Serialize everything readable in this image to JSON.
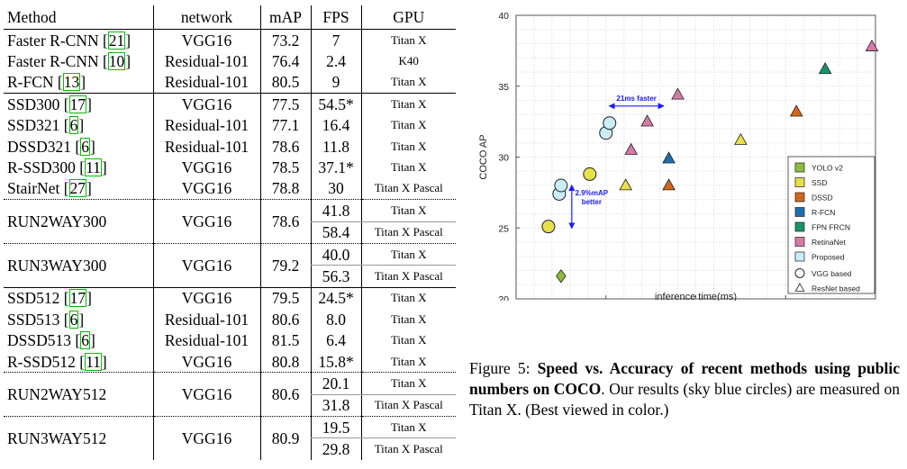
{
  "table": {
    "headers": {
      "method": "Method",
      "network": "network",
      "map": "mAP",
      "fps": "FPS",
      "gpu": "GPU"
    },
    "rows": [
      {
        "method": "Faster R-CNN",
        "ref": "21",
        "network": "VGG16",
        "map": "73.2",
        "fps": "7",
        "gpu": "Titan X"
      },
      {
        "method": "Faster R-CNN",
        "ref": "10",
        "network": "Residual-101",
        "map": "76.4",
        "fps": "2.4",
        "gpu": "K40"
      },
      {
        "method": "R-FCN",
        "ref": "13",
        "network": "Residual-101",
        "map": "80.5",
        "fps": "9",
        "gpu": "Titan X"
      },
      {
        "method": "SSD300",
        "ref": "17",
        "network": "VGG16",
        "map": "77.5",
        "fps": "54.5*",
        "gpu": "Titan X"
      },
      {
        "method": "SSD321",
        "ref": "6",
        "network": "Residual-101",
        "map": "77.1",
        "fps": "16.4",
        "gpu": "Titan X"
      },
      {
        "method": "DSSD321",
        "ref": "6",
        "network": "Residual-101",
        "map": "78.6",
        "fps": "11.8",
        "gpu": "Titan X"
      },
      {
        "method": "R-SSD300",
        "ref": "11",
        "network": "VGG16",
        "map": "78.5",
        "fps": "37.1*",
        "gpu": "Titan X"
      },
      {
        "method": "StairNet",
        "ref": "27",
        "network": "VGG16",
        "map": "78.8",
        "fps": "30",
        "gpu": "Titan X Pascal"
      },
      {
        "method": "RUN2WAY300",
        "network": "VGG16",
        "map": "78.6",
        "fps": "41.8",
        "gpu": "Titan X",
        "fps2": "58.4",
        "gpu2": "Titan X Pascal"
      },
      {
        "method": "RUN3WAY300",
        "network": "VGG16",
        "map": "79.2",
        "fps": "40.0",
        "gpu": "Titan X",
        "fps2": "56.3",
        "gpu2": "Titan X Pascal"
      },
      {
        "method": "SSD512",
        "ref": "17",
        "network": "VGG16",
        "map": "79.5",
        "fps": "24.5*",
        "gpu": "Titan X"
      },
      {
        "method": "SSD513",
        "ref": "6",
        "network": "Residual-101",
        "map": "80.6",
        "fps": "8.0",
        "gpu": "Titan X"
      },
      {
        "method": "DSSD513",
        "ref": "6",
        "network": "Residual-101",
        "map": "81.5",
        "fps": "6.4",
        "gpu": "Titan X"
      },
      {
        "method": "R-SSD512",
        "ref": "11",
        "network": "VGG16",
        "map": "80.8",
        "fps": "15.8*",
        "gpu": "Titan X"
      },
      {
        "method": "RUN2WAY512",
        "network": "VGG16",
        "map": "80.6",
        "fps": "20.1",
        "gpu": "Titan X",
        "fps2": "31.8",
        "gpu2": "Titan X Pascal"
      },
      {
        "method": "RUN3WAY512",
        "network": "VGG16",
        "map": "80.9",
        "fps": "19.5",
        "gpu": "Titan X",
        "fps2": "29.8",
        "gpu2": "Titan X Pascal"
      }
    ]
  },
  "chart_data": {
    "type": "scatter",
    "xlabel": "inference time(ms)",
    "ylabel": "COCO AP",
    "xlim": [
      0,
      200
    ],
    "ylim": [
      20,
      40
    ],
    "xticks": [
      0,
      50,
      100,
      150,
      200
    ],
    "yticks": [
      20,
      25,
      30,
      35,
      40
    ],
    "grid": true,
    "legend_position": "bottom-right",
    "series": [
      {
        "name": "YOLO v2",
        "color": "#8fbc3f",
        "marker": "diamond",
        "points": [
          [
            25,
            21.6
          ]
        ]
      },
      {
        "name": "SSD",
        "color": "#e8e04a",
        "marker_mix": true,
        "points": [
          [
            18,
            25.1,
            "circle"
          ],
          [
            41,
            28.8,
            "circle"
          ],
          [
            61,
            28.0,
            "triangle"
          ],
          [
            125,
            31.2,
            "triangle"
          ]
        ]
      },
      {
        "name": "DSSD",
        "color": "#d4651a",
        "marker": "triangle",
        "points": [
          [
            85,
            28.0
          ],
          [
            156,
            33.2
          ]
        ]
      },
      {
        "name": "R-FCN",
        "color": "#1f6fb0",
        "marker": "triangle",
        "points": [
          [
            85,
            29.9
          ]
        ]
      },
      {
        "name": "FPN FRCN",
        "color": "#14946b",
        "marker": "triangle",
        "points": [
          [
            172,
            36.2
          ]
        ]
      },
      {
        "name": "RetinaNet",
        "color": "#d67aa8",
        "marker": "triangle",
        "points": [
          [
            64,
            30.5
          ],
          [
            73,
            32.5
          ],
          [
            90,
            34.4
          ],
          [
            198,
            37.8
          ]
        ]
      },
      {
        "name": "Proposed",
        "color": "#c9eef7",
        "marker": "circle",
        "points": [
          [
            24,
            27.4
          ],
          [
            25,
            28.0
          ],
          [
            50,
            31.7
          ],
          [
            52,
            32.4
          ]
        ]
      }
    ],
    "legend": {
      "items": [
        "YOLO v2",
        "SSD",
        "DSSD",
        "R-FCN",
        "FPN FRCN",
        "RetinaNet",
        "Proposed"
      ],
      "shape_items": [
        {
          "label": "VGG based",
          "shape": "circle"
        },
        {
          "label": "ResNet based",
          "shape": "triangle"
        }
      ]
    },
    "annotations": [
      {
        "text": "21ms faster",
        "type": "horizontal-arrow",
        "from": [
          52,
          33.6
        ],
        "to": [
          82,
          33.6
        ]
      },
      {
        "text_lines": [
          "2.9%mAP",
          "better"
        ],
        "type": "vertical-arrow",
        "from": [
          31,
          25
        ],
        "to": [
          31,
          28
        ]
      }
    ],
    "annotation_color": "#1a1aff"
  },
  "caption": {
    "prefix": "Figure 5: ",
    "bold": "Speed vs. Accuracy of recent methods using public numbers on COCO",
    "rest": ". Our results (sky blue circles) are measured on Titan X. (Best viewed in color.)"
  }
}
